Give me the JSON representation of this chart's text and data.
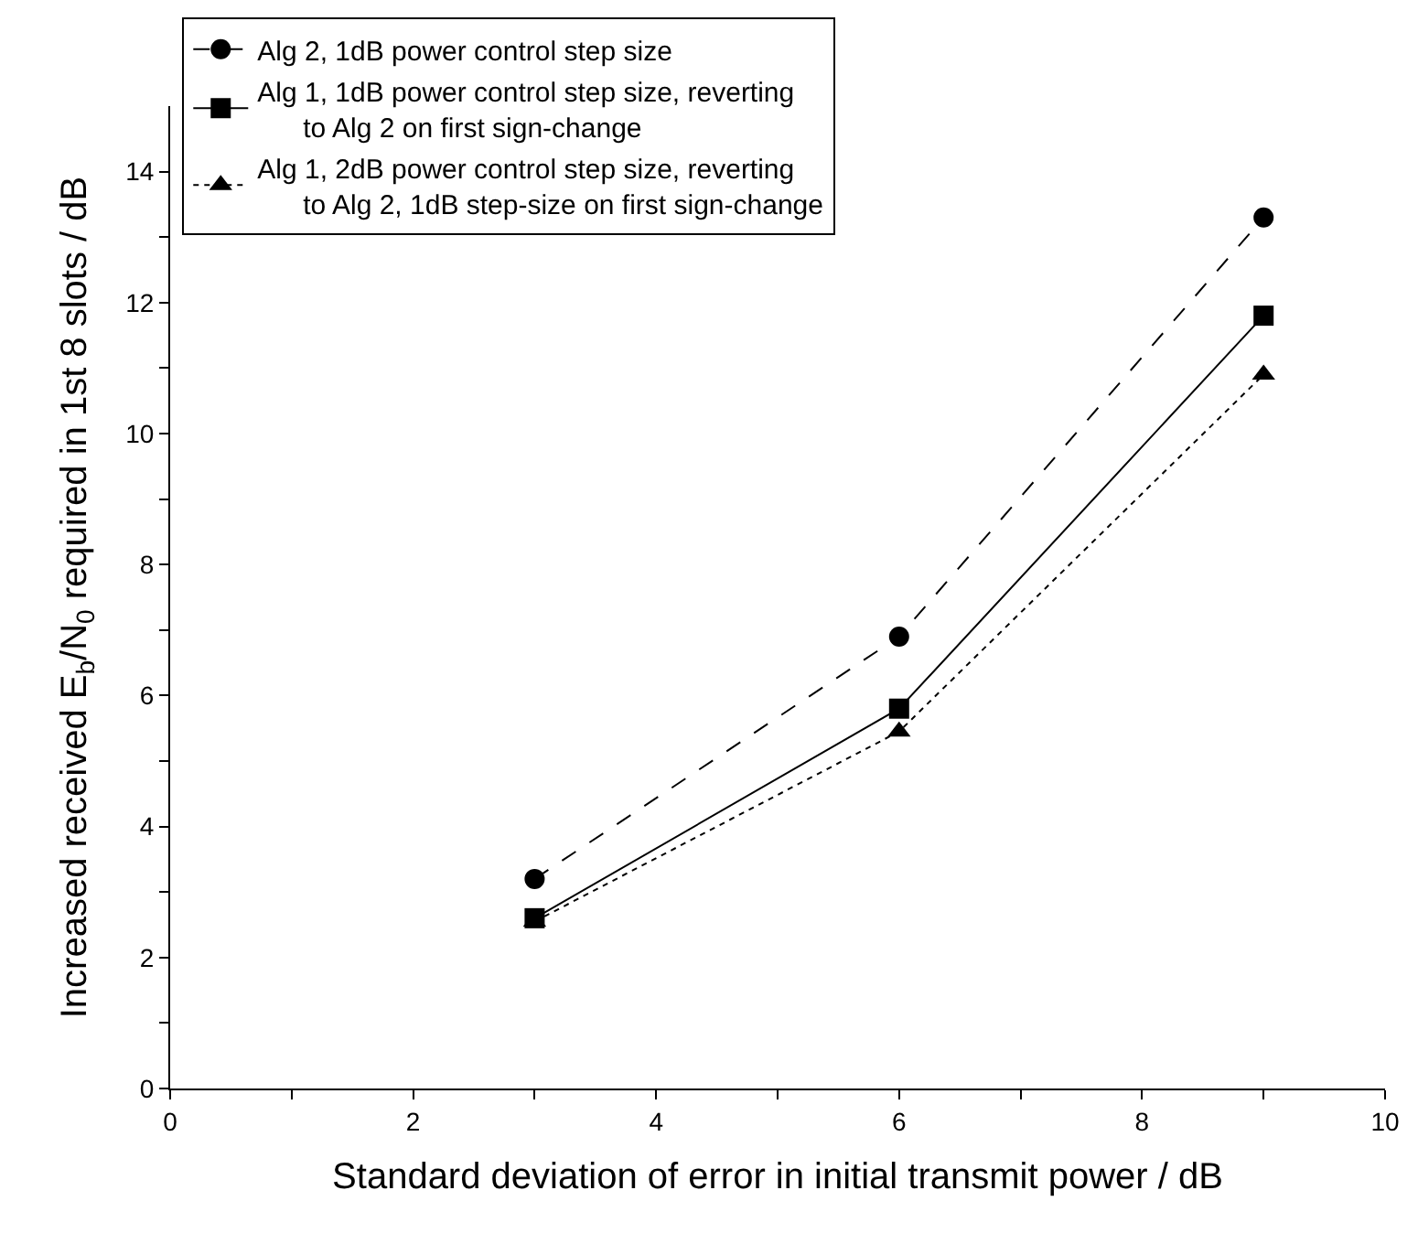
{
  "chart_data": {
    "type": "line",
    "xlabel": "Standard deviation of error in initial transmit power / dB",
    "ylabel": "Increased received E$_{b}$/N$_{0}$ required in 1st 8 slots / dB",
    "x": [
      3,
      6,
      9
    ],
    "series": [
      {
        "name": "Alg 2, 1dB power control step size",
        "color": "#000000",
        "values": [
          3.2,
          6.9,
          13.3
        ],
        "marker": "circle",
        "line_style": "dashed"
      },
      {
        "name": "Alg 1, 1dB power control step size, reverting\n      to Alg 2 on first sign-change",
        "color": "#000000",
        "values": [
          2.6,
          5.8,
          11.8
        ],
        "marker": "square",
        "line_style": "solid"
      },
      {
        "name": "Alg 1, 2dB power control step size, reverting\n      to Alg 2, 1dB step-size on first sign-change",
        "color": "#000000",
        "values": [
          2.55,
          5.45,
          10.9
        ],
        "marker": "triangle",
        "line_style": "dotted"
      }
    ],
    "xlim": [
      0,
      10
    ],
    "xticks": [
      0,
      {
        "value": 1,
        "label": null
      },
      2,
      {
        "value": 3,
        "label": null
      },
      4,
      {
        "value": 5,
        "label": null
      },
      6,
      {
        "value": 7,
        "label": null
      },
      8,
      {
        "value": 9,
        "label": null
      },
      10
    ],
    "ylim": [
      0,
      15
    ],
    "yticks": [
      0,
      {
        "value": 1,
        "label": null
      },
      2,
      {
        "value": 3,
        "label": null
      },
      4,
      {
        "value": 5,
        "label": null
      },
      6,
      {
        "value": 7,
        "label": null
      },
      8,
      {
        "value": 9,
        "label": null
      },
      10,
      {
        "value": 11,
        "label": null
      },
      12,
      {
        "value": 13,
        "label": null
      },
      14
    ],
    "legend": "top left"
  }
}
